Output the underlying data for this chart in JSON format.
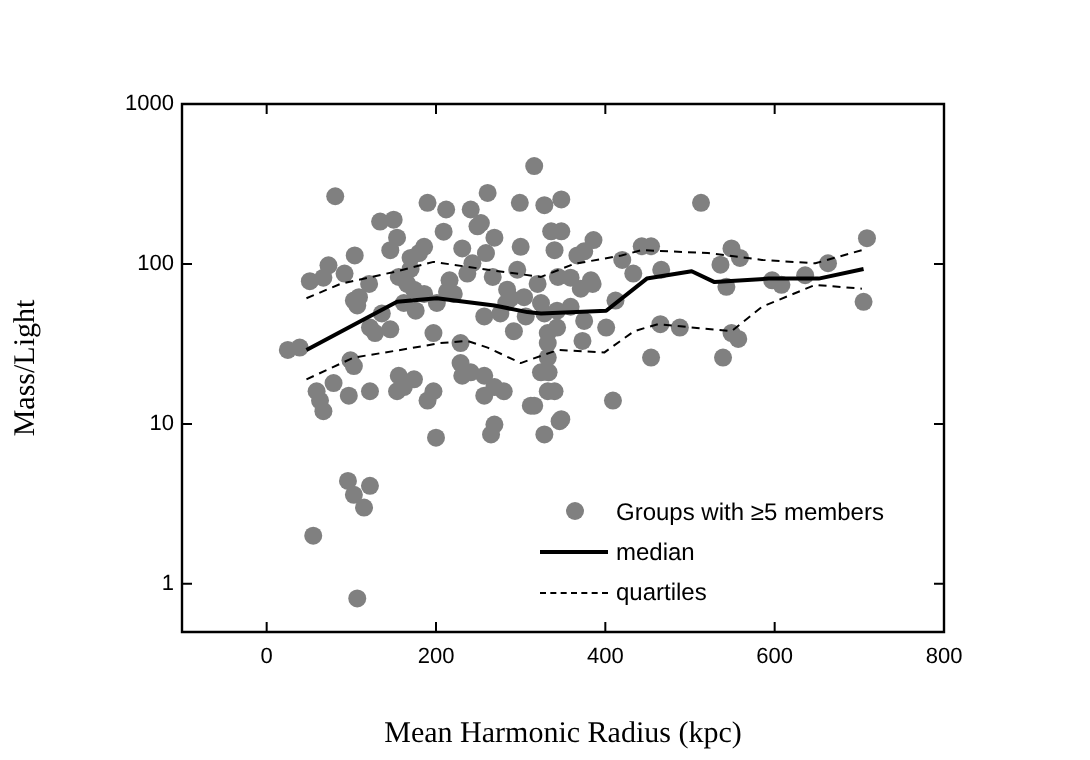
{
  "chart_data": {
    "type": "scatter",
    "xlabel": "Mean Harmonic Radius (kpc)",
    "ylabel": "Mass/Light",
    "xlim": [
      -100,
      800
    ],
    "xticks": [
      0,
      200,
      400,
      600,
      800
    ],
    "ylim": [
      0.5,
      1000
    ],
    "yticks": [
      1,
      10,
      100,
      1000
    ],
    "log": "y",
    "legend": "bottom right",
    "grid": false,
    "series": [
      {
        "name": "Groups with ≥5 members",
        "marker": "circle",
        "color": "#808080",
        "x": [
          25,
          39,
          51,
          67,
          73,
          81,
          92,
          104,
          103,
          107,
          109,
          121,
          122,
          128,
          134,
          136,
          146,
          150,
          146,
          154,
          156,
          162,
          166,
          170,
          170,
          174,
          176,
          180,
          186,
          190,
          186,
          197,
          201,
          209,
          212,
          213,
          216,
          221,
          229,
          231,
          237,
          241,
          243,
          249,
          253,
          257,
          259,
          261,
          267,
          269,
          276,
          283,
          284,
          288,
          292,
          299,
          296,
          300,
          304,
          306,
          316,
          320,
          324,
          328,
          328,
          332,
          336,
          340,
          344,
          348,
          348,
          367,
          375,
          386,
          359,
          383,
          385,
          371,
          359,
          343,
          343,
          375,
          401,
          332,
          373,
          332,
          420,
          412,
          433,
          443,
          454,
          466,
          465,
          488,
          513,
          536,
          549,
          559,
          543,
          597,
          608,
          636,
          663,
          454,
          539,
          549,
          557,
          709,
          705,
          59,
          63,
          67,
          79,
          97,
          99,
          103,
          122,
          154,
          156,
          162,
          174,
          190,
          197,
          200,
          229,
          231,
          241,
          257,
          257,
          265,
          269,
          269,
          280,
          312,
          316,
          324,
          328,
          332,
          333,
          346,
          55,
          96,
          103,
          115,
          122,
          107,
          409,
          348,
          340
        ],
        "values": [
          29,
          30,
          78,
          82,
          98,
          265,
          87,
          113,
          59,
          55,
          62,
          75,
          40,
          37,
          184,
          49,
          39,
          189,
          122,
          146,
          83,
          57,
          75,
          109,
          93,
          69,
          51,
          117,
          128,
          241,
          65,
          37,
          57,
          159,
          219,
          67,
          79,
          65,
          32,
          125,
          87,
          219,
          101,
          172,
          180,
          47,
          117,
          278,
          83,
          146,
          49,
          57,
          69,
          61,
          38,
          241,
          92,
          128,
          62,
          47,
          409,
          75,
          57,
          233,
          49,
          37,
          160,
          122,
          83,
          253,
          160,
          113,
          120,
          141,
          82,
          79,
          75,
          70,
          54,
          51,
          40,
          44,
          40,
          32,
          33,
          26,
          106,
          59,
          87,
          129,
          129,
          92,
          42,
          40,
          241,
          99,
          125,
          109,
          72,
          79,
          74,
          85,
          101,
          26,
          26,
          37,
          34,
          145,
          58,
          16,
          14,
          12,
          18,
          15,
          25,
          23,
          16,
          16,
          20,
          17,
          19,
          14,
          16,
          8.2,
          24,
          20,
          21,
          20,
          15,
          8.6,
          9.9,
          17,
          16,
          13,
          13,
          21,
          8.6,
          16,
          21,
          10.4,
          2.0,
          4.4,
          3.6,
          3.0,
          4.1,
          0.81,
          14,
          10.7,
          16
        ]
      },
      {
        "name": "median",
        "type": "line",
        "marker": "none",
        "line_style": "solid",
        "color": "#000000",
        "x": [
          47,
          154,
          201,
          269,
          308,
          324,
          401,
          449,
          502,
          529,
          593,
          652,
          705
        ],
        "values": [
          29,
          58,
          61,
          55,
          50,
          49,
          51,
          81,
          90,
          77,
          81,
          81,
          93
        ]
      },
      {
        "name": "quartiles",
        "type": "line",
        "marker": "none",
        "line_style": "dashed",
        "color": "#000000",
        "x": [
          47,
          87,
          154,
          197,
          261,
          324,
          363,
          419,
          443,
          521,
          585,
          648,
          703
        ],
        "values": [
          61,
          75,
          90,
          103,
          92,
          83,
          100,
          113,
          122,
          117,
          106,
          101,
          122
        ]
      },
      {
        "type": "line",
        "marker": "none",
        "line_style": "dashed",
        "color": "#000000",
        "x": [
          47,
          103,
          158,
          205,
          237,
          261,
          300,
          344,
          399,
          434,
          462,
          549,
          585,
          648,
          703
        ],
        "values": [
          19,
          26,
          29,
          32,
          33,
          30,
          24,
          29,
          28,
          38,
          42,
          38,
          54,
          74,
          70
        ]
      }
    ]
  }
}
